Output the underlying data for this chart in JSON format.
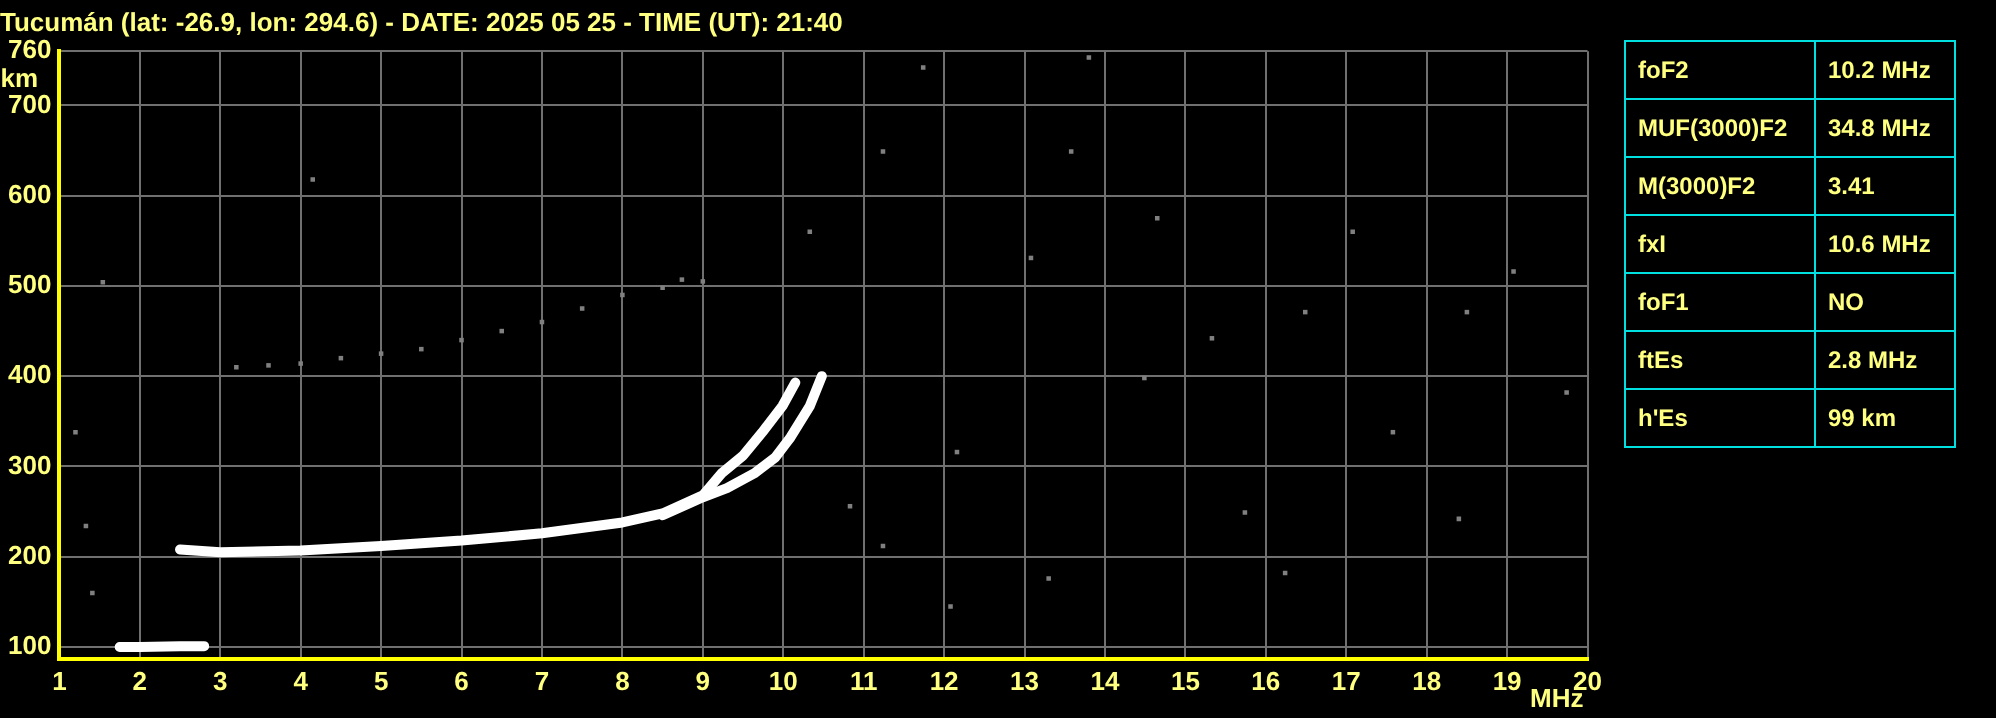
{
  "chart_data": [
    {
      "type": "scatter",
      "title": "Tucumán (lat: -26.9, lon: 294.6) - DATE: 2025 05 25 - TIME (UT): 21:40",
      "xlabel": "MHz",
      "ylabel": "km",
      "xlim": [
        1,
        20
      ],
      "xticks": [
        1,
        2,
        3,
        4,
        5,
        6,
        7,
        8,
        9,
        10,
        11,
        12,
        13,
        14,
        15,
        16,
        17,
        18,
        19,
        20
      ],
      "ylim": [
        87,
        760
      ],
      "yticks": [
        100,
        200,
        300,
        400,
        500,
        600,
        700,
        760
      ],
      "grid": true,
      "legend": false,
      "series": [
        {
          "type": "line",
          "color": "#ffffff",
          "marker": "none",
          "x": [
            2.5,
            3,
            4,
            5,
            6,
            7,
            8,
            8.5,
            9,
            9.24,
            9.5,
            9.74,
            9.99,
            10.15
          ],
          "values": [
            208,
            205,
            207,
            212,
            218,
            226,
            238,
            248,
            268,
            293,
            312,
            338,
            367,
            393
          ]
        },
        {
          "type": "line",
          "color": "#ffffff",
          "marker": "none",
          "x": [
            8.5,
            9,
            9.3,
            9.65,
            9.9,
            10.08,
            10.33,
            10.48
          ],
          "values": [
            246,
            266,
            276,
            293,
            310,
            331,
            367,
            400
          ]
        },
        {
          "type": "line",
          "color": "#ffffff",
          "marker": "none",
          "x": [
            1.75,
            2,
            2.5,
            2.8
          ],
          "values": [
            100,
            100,
            101,
            101
          ]
        },
        {
          "type": "scatter",
          "color": "#808080",
          "marker": "square",
          "x": [
            3.2,
            3.6,
            4,
            4.5,
            5,
            5.5,
            6,
            6.5,
            7,
            7.5,
            8,
            8.5,
            8.74,
            9
          ],
          "values": [
            410,
            412,
            414,
            420,
            425,
            430,
            440,
            450,
            460,
            475,
            490,
            498,
            507,
            505
          ]
        },
        {
          "type": "scatter",
          "color": "#808080",
          "marker": "square",
          "x": [
            16.49,
            14.49,
            13.3,
            13.8,
            14.65,
            17.08,
            18.5,
            15.74,
            19.74,
            13.58,
            17.58,
            16.24,
            18.4,
            15.33,
            19.08,
            13.08,
            1.54,
            11.24,
            10.33,
            11.74,
            4.15,
            1.2,
            1.33,
            1.41,
            10.83,
            12.08,
            11.24,
            12.16
          ],
          "values": [
            471,
            398,
            176,
            753,
            575,
            560,
            471,
            249,
            382,
            649,
            338,
            182,
            242,
            442,
            516,
            531,
            504,
            649,
            560,
            742,
            618,
            338,
            234,
            160,
            256,
            145,
            212,
            316
          ]
        }
      ]
    },
    {
      "type": "other",
      "annotations": [
        "foF2",
        "10.2 MHz",
        "MUF(3000)F2",
        "34.8 MHz",
        "M(3000)F2",
        "3.41",
        "fxI",
        "10.6 MHz",
        "foF1",
        "NO",
        "ftEs",
        "2.8 MHz",
        "h'Es",
        "99 km"
      ]
    }
  ]
}
